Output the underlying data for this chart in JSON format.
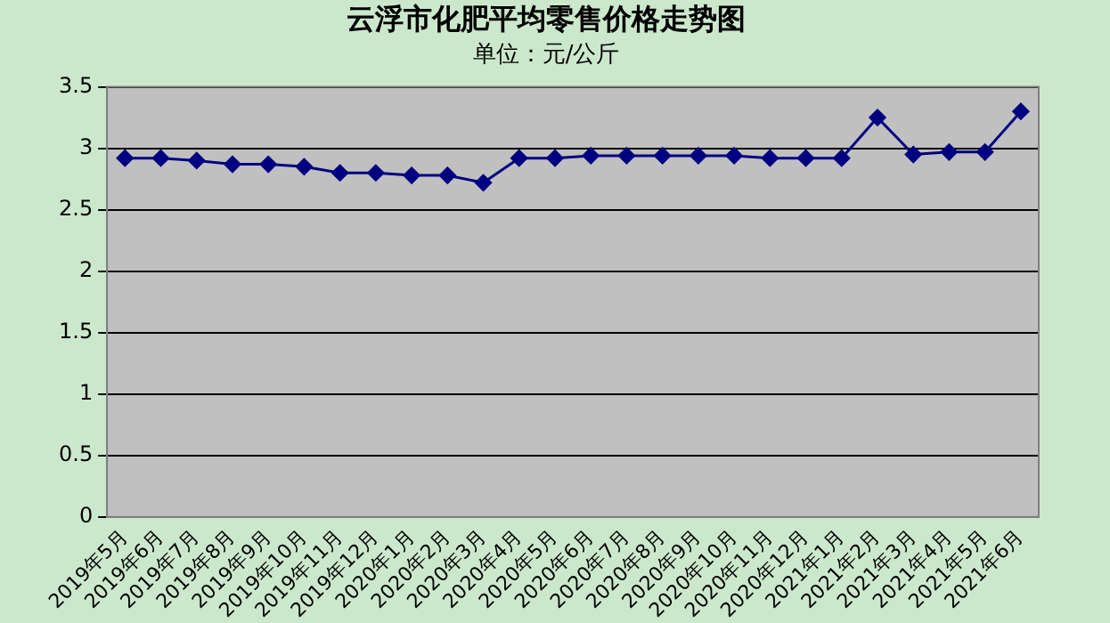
{
  "chart_data": {
    "type": "line",
    "title": "云浮市化肥平均零售价格走势图",
    "subtitle": "单位：元/公斤",
    "categories": [
      "2019年5月",
      "2019年6月",
      "2019年7月",
      "2019年8月",
      "2019年9月",
      "2019年10月",
      "2019年11月",
      "2019年12月",
      "2020年1月",
      "2020年2月",
      "2020年3月",
      "2020年4月",
      "2020年5月",
      "2020年6月",
      "2020年7月",
      "2020年8月",
      "2020年9月",
      "2020年10月",
      "2020年11月",
      "2020年12月",
      "2021年1月",
      "2021年2月",
      "2021年3月",
      "2021年4月",
      "2021年5月",
      "2021年6月"
    ],
    "series": [
      {
        "color": "#000080",
        "values": [
          2.92,
          2.92,
          2.9,
          2.87,
          2.87,
          2.85,
          2.8,
          2.8,
          2.78,
          2.78,
          2.72,
          2.92,
          2.92,
          2.94,
          2.94,
          2.94,
          2.94,
          2.94,
          2.92,
          2.92,
          2.92,
          3.25,
          2.95,
          2.97,
          2.97,
          3.3
        ]
      }
    ],
    "ylim": [
      0,
      3.5
    ],
    "yticks": [
      0,
      0.5,
      1,
      1.5,
      2,
      2.5,
      3,
      3.5
    ],
    "grid": "y",
    "legend": false,
    "marker": "diamond",
    "line_style": "solid"
  }
}
